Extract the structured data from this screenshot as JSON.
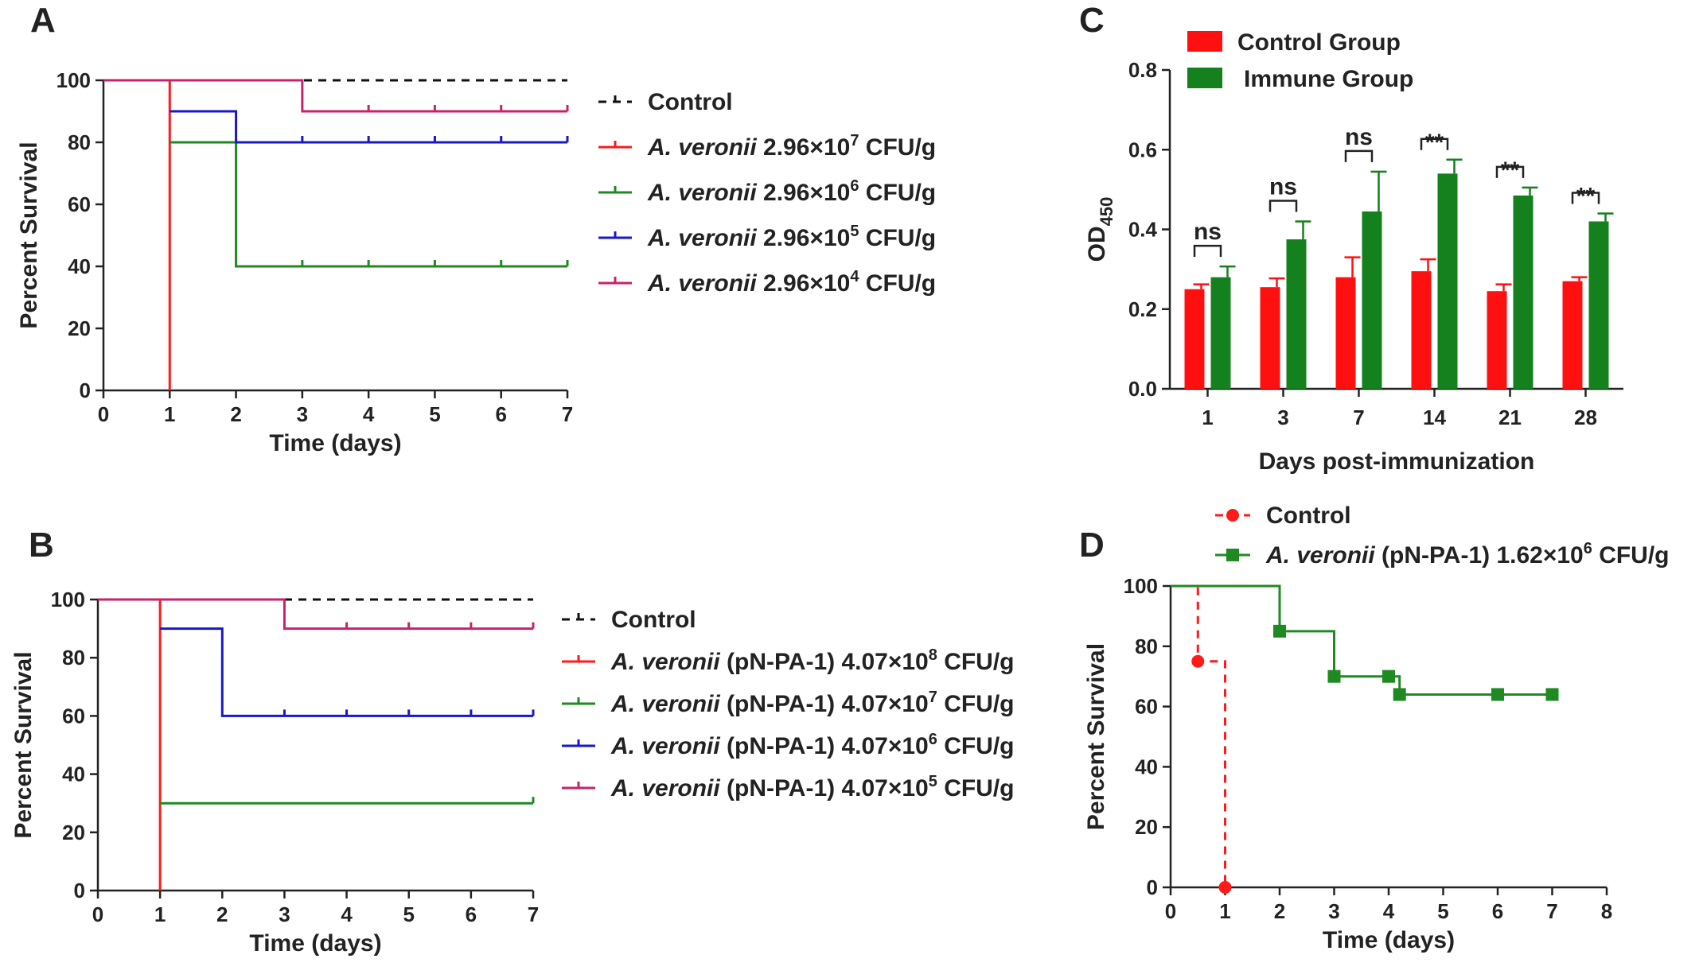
{
  "colors": {
    "control": "#111111",
    "red": "#ff1a1a",
    "green": "#1f8a22",
    "blue": "#1818c8",
    "magenta": "#c8236a",
    "bar_red": "#ff1010",
    "bar_green": "#14801e"
  },
  "chart_data": [
    {
      "panel": "A",
      "type": "line",
      "subtype": "kaplan-meier",
      "xlabel": "Time (days)",
      "ylabel": "Percent Survival",
      "xlim": [
        0,
        7
      ],
      "ylim": [
        0,
        100
      ],
      "xticks": [
        "0",
        "1",
        "2",
        "3",
        "4",
        "5",
        "6",
        "7"
      ],
      "yticks": [
        "0",
        "20",
        "40",
        "60",
        "80",
        "100"
      ],
      "legend_position": "right",
      "series": [
        {
          "name": "Control",
          "legend_parts": [
            "Control"
          ],
          "color": "control",
          "dashed": true,
          "steps": [
            [
              0,
              100
            ],
            [
              7,
              100
            ]
          ],
          "censor": []
        },
        {
          "name": "A. veronii 2.96×10^7 CFU/g",
          "legend_parts": [
            "A. veronii",
            " 2.96×10",
            "7",
            " CFU/g"
          ],
          "color": "red",
          "dashed": false,
          "steps": [
            [
              0,
              100
            ],
            [
              1,
              0
            ]
          ],
          "censor": []
        },
        {
          "name": "A. veronii 2.96×10^6 CFU/g",
          "legend_parts": [
            "A. veronii",
            " 2.96×10",
            "6",
            " CFU/g"
          ],
          "color": "green",
          "dashed": false,
          "steps": [
            [
              1,
              80
            ],
            [
              2,
              40
            ],
            [
              7,
              40
            ]
          ],
          "censor": [
            3,
            4,
            5,
            6,
            7
          ]
        },
        {
          "name": "A. veronii 2.96×10^5 CFU/g",
          "legend_parts": [
            "A. veronii",
            " 2.96×10",
            "5",
            " CFU/g"
          ],
          "color": "blue",
          "dashed": false,
          "steps": [
            [
              1,
              90
            ],
            [
              2,
              80
            ],
            [
              7,
              80
            ]
          ],
          "censor": [
            3,
            4,
            5,
            6,
            7
          ]
        },
        {
          "name": "A. veronii 2.96×10^4 CFU/g",
          "legend_parts": [
            "A. veronii",
            " 2.96×10",
            "4",
            " CFU/g"
          ],
          "color": "magenta",
          "dashed": false,
          "steps": [
            [
              0,
              100
            ],
            [
              3,
              90
            ],
            [
              7,
              90
            ]
          ],
          "censor": [
            4,
            5,
            6,
            7
          ]
        }
      ]
    },
    {
      "panel": "B",
      "type": "line",
      "subtype": "kaplan-meier",
      "xlabel": "Time (days)",
      "ylabel": "Percent Survival",
      "xlim": [
        0,
        7
      ],
      "ylim": [
        0,
        100
      ],
      "xticks": [
        "0",
        "1",
        "2",
        "3",
        "4",
        "5",
        "6",
        "7"
      ],
      "yticks": [
        "0",
        "20",
        "40",
        "60",
        "80",
        "100"
      ],
      "legend_position": "right",
      "series": [
        {
          "name": "Control",
          "legend_parts": [
            "Control"
          ],
          "color": "control",
          "dashed": true,
          "steps": [
            [
              0,
              100
            ],
            [
              7,
              100
            ]
          ],
          "censor": []
        },
        {
          "name": "A. veronii (pN-PA-1) 4.07×10^8 CFU/g",
          "legend_parts": [
            "A. veronii",
            " (pN-PA-1) 4.07×10",
            "8",
            " CFU/g"
          ],
          "color": "red",
          "dashed": false,
          "steps": [
            [
              0,
              100
            ],
            [
              1,
              0
            ]
          ],
          "censor": []
        },
        {
          "name": "A. veronii (pN-PA-1) 4.07×10^7 CFU/g",
          "legend_parts": [
            "A. veronii",
            " (pN-PA-1) 4.07×10",
            "7",
            " CFU/g"
          ],
          "color": "green",
          "dashed": false,
          "steps": [
            [
              1,
              30
            ],
            [
              7,
              30
            ]
          ],
          "censor": [
            7
          ]
        },
        {
          "name": "A. veronii (pN-PA-1) 4.07×10^6 CFU/g",
          "legend_parts": [
            "A. veronii",
            " (pN-PA-1) 4.07×10",
            "6",
            " CFU/g"
          ],
          "color": "blue",
          "dashed": false,
          "steps": [
            [
              1,
              90
            ],
            [
              2,
              60
            ],
            [
              7,
              60
            ]
          ],
          "censor": [
            3,
            4,
            5,
            6,
            7
          ]
        },
        {
          "name": "A. veronii (pN-PA-1) 4.07×10^5 CFU/g",
          "legend_parts": [
            "A. veronii",
            " (pN-PA-1) 4.07×10",
            "5",
            " CFU/g"
          ],
          "color": "magenta",
          "dashed": false,
          "steps": [
            [
              0,
              100
            ],
            [
              3,
              90
            ],
            [
              7,
              90
            ]
          ],
          "censor": [
            4,
            5,
            6,
            7
          ]
        }
      ]
    },
    {
      "panel": "C",
      "type": "bar",
      "xlabel": "Days post-immunization",
      "ylabel": "OD",
      "ylabel_subscript": "450",
      "ylim": [
        0,
        0.8
      ],
      "yticks": [
        "0.0",
        "0.2",
        "0.4",
        "0.6",
        "0.8"
      ],
      "categories": [
        "1",
        "3",
        "7",
        "14",
        "21",
        "28"
      ],
      "legend_position": "top-left",
      "series": [
        {
          "name": "Control Group",
          "color": "bar_red",
          "values": [
            0.25,
            0.255,
            0.28,
            0.295,
            0.245,
            0.27
          ],
          "errors": [
            0.012,
            0.022,
            0.05,
            0.03,
            0.017,
            0.01
          ]
        },
        {
          "name": "Immune Group",
          "color": "bar_green",
          "values": [
            0.28,
            0.375,
            0.445,
            0.54,
            0.485,
            0.42
          ],
          "errors": [
            0.027,
            0.045,
            0.1,
            0.035,
            0.02,
            0.02
          ]
        }
      ],
      "significance": [
        "ns",
        "ns",
        "ns",
        "**",
        "**",
        "**"
      ]
    },
    {
      "panel": "D",
      "type": "line",
      "subtype": "kaplan-meier",
      "xlabel": "Time (days)",
      "ylabel": "Percent Survival",
      "xlim": [
        0,
        8
      ],
      "ylim": [
        0,
        100
      ],
      "xticks": [
        "0",
        "1",
        "2",
        "3",
        "4",
        "5",
        "6",
        "7",
        "8"
      ],
      "yticks": [
        "0",
        "20",
        "40",
        "60",
        "80",
        "100"
      ],
      "legend_position": "top",
      "series": [
        {
          "name": "Control",
          "legend_parts": [
            "Control"
          ],
          "color": "red",
          "dashed": true,
          "marker": "circle",
          "steps": [
            [
              0,
              100
            ],
            [
              0.5,
              75
            ],
            [
              1,
              0
            ]
          ],
          "points": [
            [
              0.5,
              75
            ],
            [
              1,
              0
            ]
          ]
        },
        {
          "name": "A. veronii (pN-PA-1) 1.62×10^6 CFU/g",
          "legend_parts": [
            "A. veronii",
            " (pN-PA-1) 1.62×10",
            "6",
            " CFU/g"
          ],
          "color": "green",
          "dashed": false,
          "marker": "square",
          "steps": [
            [
              0,
              100
            ],
            [
              2,
              85
            ],
            [
              3,
              70
            ],
            [
              4.2,
              64
            ],
            [
              7,
              64
            ]
          ],
          "points": [
            [
              2,
              85
            ],
            [
              3,
              70
            ],
            [
              4,
              70
            ],
            [
              4.2,
              64
            ],
            [
              6,
              64
            ],
            [
              7,
              64
            ]
          ]
        }
      ]
    }
  ]
}
